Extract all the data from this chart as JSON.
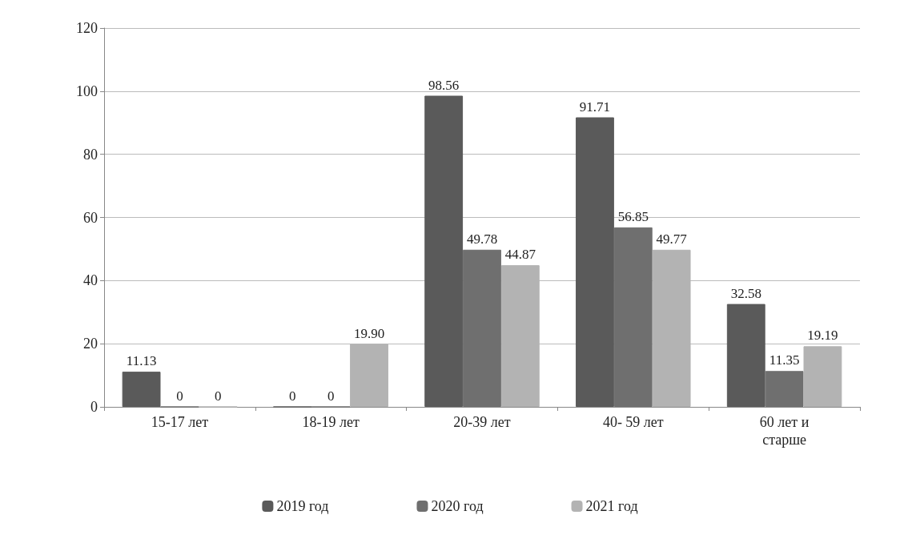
{
  "chart_data": {
    "type": "bar",
    "categories": [
      "15-17 лет",
      "18-19 лет",
      "20-39 лет",
      "40- 59 лет",
      "60 лет и\nстарше"
    ],
    "series": [
      {
        "name": "2019 год",
        "color": "#5a5a5a",
        "values": [
          11.13,
          0,
          98.56,
          91.71,
          32.58
        ],
        "value_labels": [
          "11.13",
          "0",
          "98.56",
          "91.71",
          "32.58"
        ]
      },
      {
        "name": "2020 год",
        "color": "#6f6f6f",
        "values": [
          0,
          0,
          49.78,
          56.85,
          11.35
        ],
        "value_labels": [
          "0",
          "0",
          "49.78",
          "56.85",
          "11.35"
        ]
      },
      {
        "name": "2021 год",
        "color": "#b3b3b3",
        "values": [
          0,
          19.9,
          44.87,
          49.77,
          19.19
        ],
        "value_labels": [
          "0",
          "19.90",
          "44.87",
          "49.77",
          "19.19"
        ]
      }
    ],
    "ylim": [
      0,
      120
    ],
    "yticks": [
      0,
      20,
      40,
      60,
      80,
      100,
      120
    ],
    "grid": "y",
    "legend": "bottom"
  }
}
